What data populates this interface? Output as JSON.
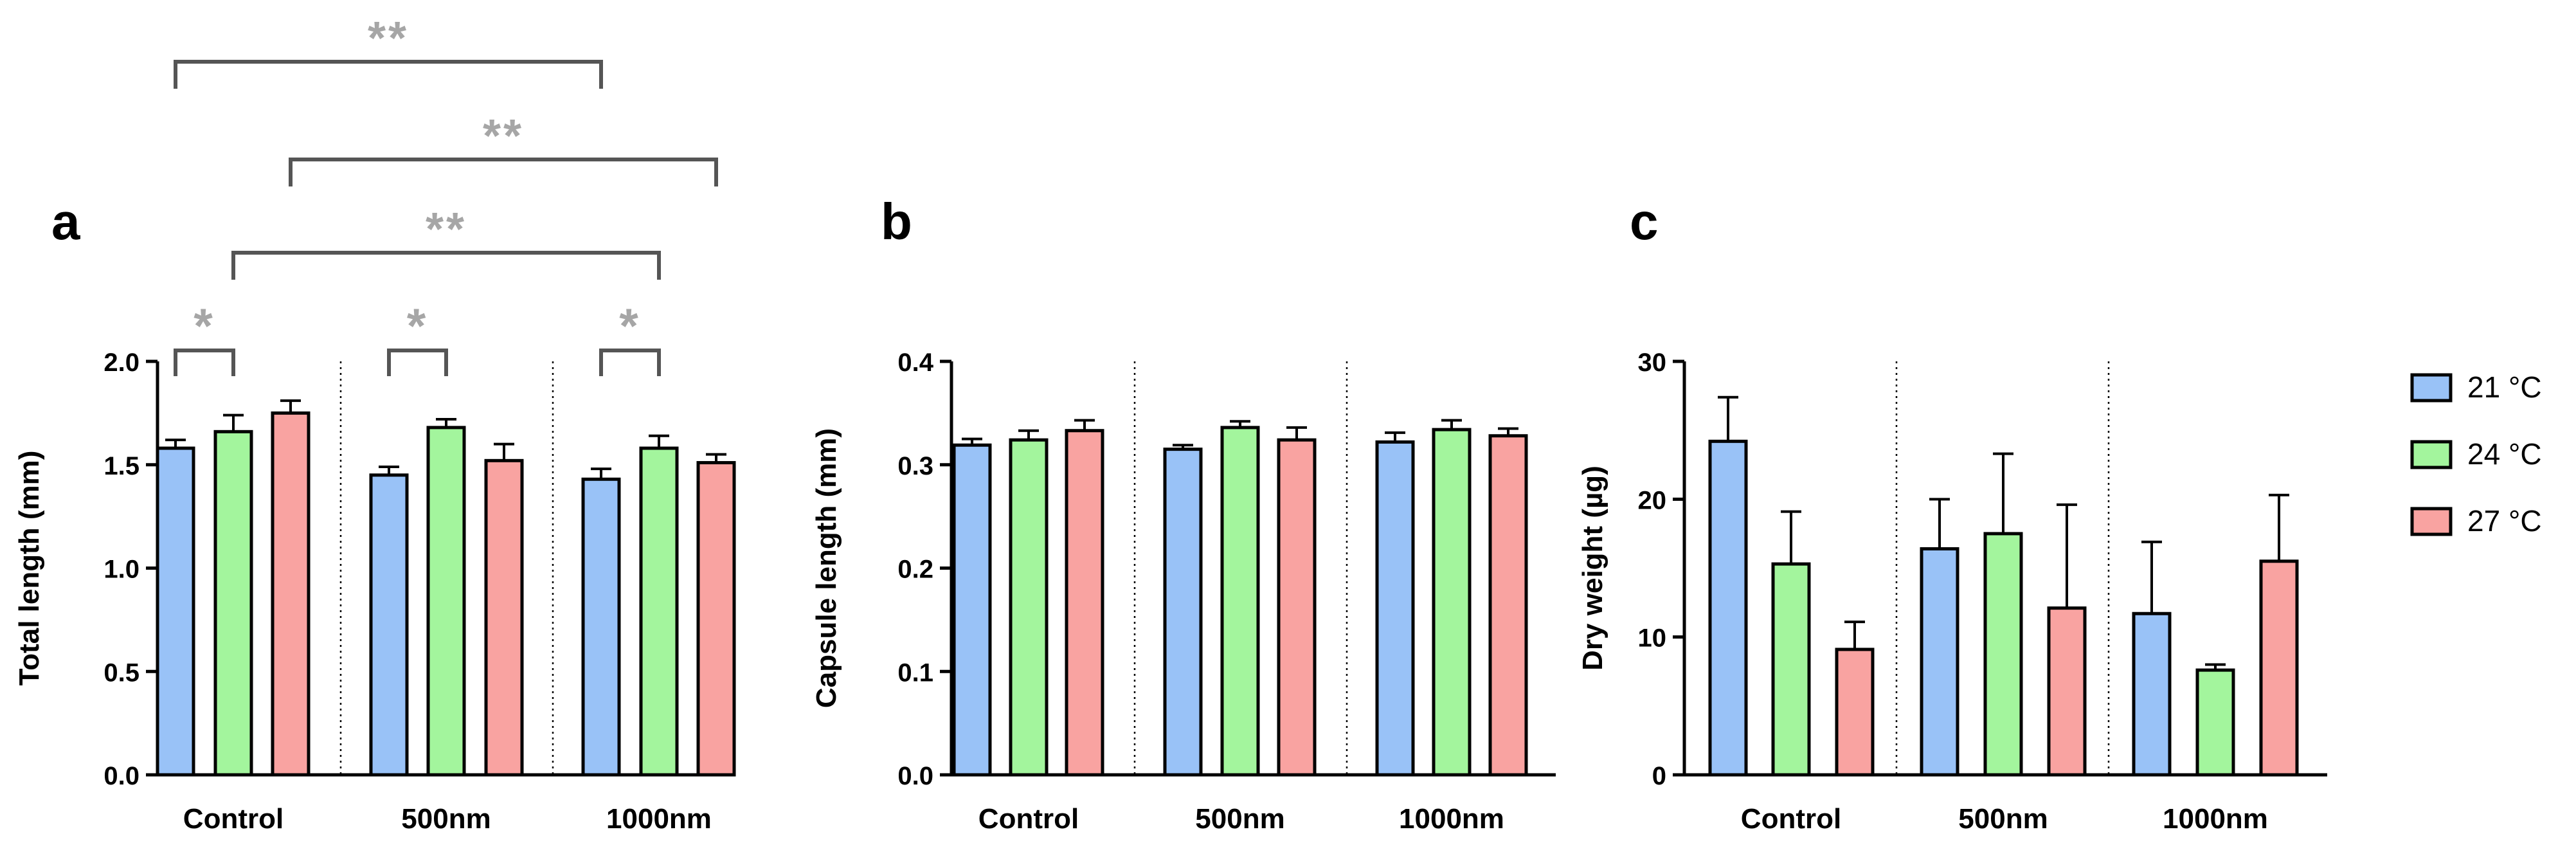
{
  "colors": {
    "21C": "#99c2f7",
    "24C": "#a3f59d",
    "27C": "#f9a3a1",
    "bracket": "#555555",
    "sig": "#a6a6a6"
  },
  "legend": [
    {
      "label": "21 °C",
      "color_key": "21C"
    },
    {
      "label": "24 °C",
      "color_key": "24C"
    },
    {
      "label": "27 °C",
      "color_key": "27C"
    }
  ],
  "chart_data": [
    {
      "panel": "a",
      "type": "bar",
      "ylabel": "Total length (mm)",
      "ylim": [
        0,
        2.0
      ],
      "yticks": [
        "0.0",
        "0.5",
        "1.0",
        "1.5",
        "2.0"
      ],
      "ytick_values": [
        0,
        0.5,
        1.0,
        1.5,
        2.0
      ],
      "categories": [
        "Control",
        "500nm",
        "1000nm"
      ],
      "series": [
        {
          "name": "21 °C",
          "values": [
            1.58,
            1.45,
            1.43
          ],
          "errors": [
            0.04,
            0.04,
            0.05
          ]
        },
        {
          "name": "24 °C",
          "values": [
            1.66,
            1.68,
            1.58
          ],
          "errors": [
            0.08,
            0.04,
            0.06
          ]
        },
        {
          "name": "27 °C",
          "values": [
            1.75,
            1.52,
            1.51
          ],
          "errors": [
            0.06,
            0.08,
            0.04
          ]
        }
      ],
      "significance": [
        {
          "label": "*",
          "from": [
            0,
            0
          ],
          "to": [
            0,
            1
          ],
          "level": 0
        },
        {
          "label": "*",
          "from": [
            1,
            0
          ],
          "to": [
            1,
            1
          ],
          "level": 0
        },
        {
          "label": "*",
          "from": [
            2,
            0
          ],
          "to": [
            2,
            1
          ],
          "level": 0
        },
        {
          "label": "**",
          "from": [
            0,
            1
          ],
          "to": [
            2,
            1
          ],
          "level": 1
        },
        {
          "label": "**",
          "from": [
            0,
            2
          ],
          "to": [
            2,
            2
          ],
          "level": 2
        },
        {
          "label": "**",
          "from": [
            0,
            0
          ],
          "to": [
            2,
            0
          ],
          "level": 3
        }
      ]
    },
    {
      "panel": "b",
      "type": "bar",
      "ylabel": "Capsule length (mm)",
      "ylim": [
        0,
        0.4
      ],
      "yticks": [
        "0.0",
        "0.1",
        "0.2",
        "0.3",
        "0.4"
      ],
      "ytick_values": [
        0,
        0.1,
        0.2,
        0.3,
        0.4
      ],
      "categories": [
        "Control",
        "500nm",
        "1000nm"
      ],
      "series": [
        {
          "name": "21 °C",
          "values": [
            0.319,
            0.315,
            0.322
          ],
          "errors": [
            0.006,
            0.004,
            0.009
          ]
        },
        {
          "name": "24 °C",
          "values": [
            0.324,
            0.336,
            0.334
          ],
          "errors": [
            0.009,
            0.006,
            0.009
          ]
        },
        {
          "name": "27 °C",
          "values": [
            0.333,
            0.324,
            0.328
          ],
          "errors": [
            0.01,
            0.012,
            0.007
          ]
        }
      ],
      "significance": []
    },
    {
      "panel": "c",
      "type": "bar",
      "ylabel": "Dry weight (µg)",
      "ylim": [
        0,
        30
      ],
      "yticks": [
        "0",
        "10",
        "20",
        "30"
      ],
      "ytick_values": [
        0,
        10,
        20,
        30
      ],
      "categories": [
        "Control",
        "500nm",
        "1000nm"
      ],
      "series": [
        {
          "name": "21 °C",
          "values": [
            24.2,
            16.4,
            11.7
          ],
          "errors": [
            3.2,
            3.6,
            5.2
          ]
        },
        {
          "name": "24 °C",
          "values": [
            15.3,
            17.5,
            7.6
          ],
          "errors": [
            3.8,
            5.8,
            0.4
          ]
        },
        {
          "name": "27 °C",
          "values": [
            9.1,
            12.1,
            15.5
          ],
          "errors": [
            2.0,
            7.5,
            4.8
          ]
        }
      ],
      "significance": []
    }
  ]
}
